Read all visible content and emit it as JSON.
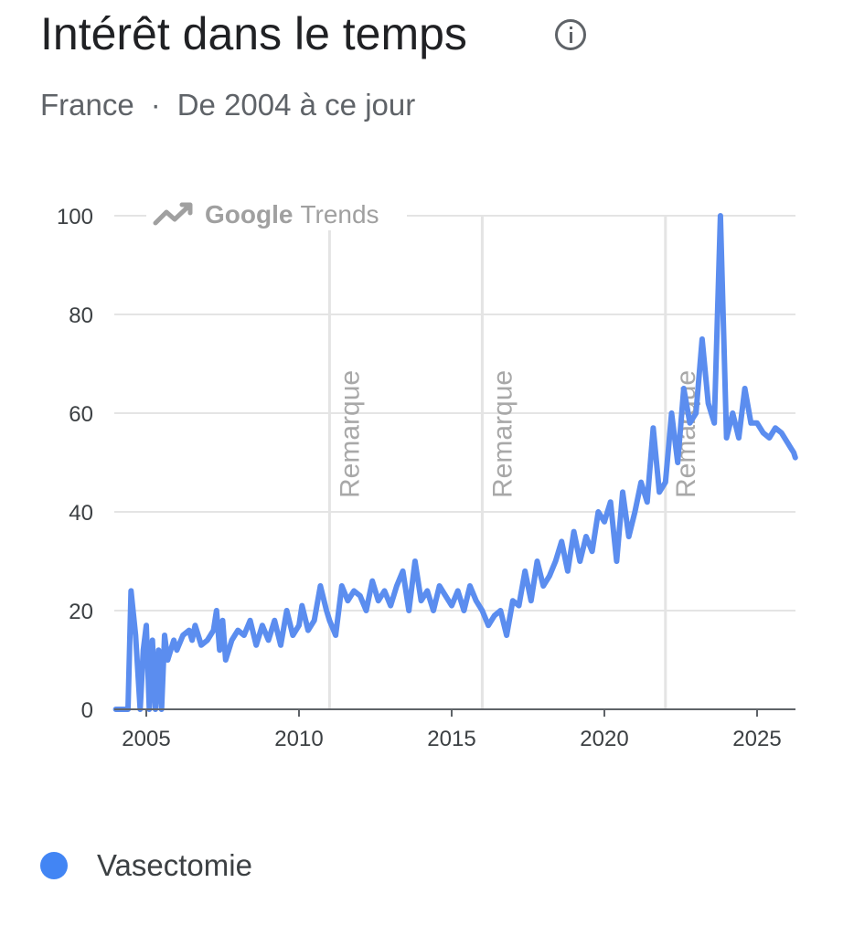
{
  "header": {
    "title": "Intérêt dans le temps",
    "region": "France",
    "separator": "·",
    "period": "De 2004 à ce jour"
  },
  "watermark": {
    "brand": "Google",
    "product": "Trends",
    "icon": "trending-up-icon"
  },
  "colors": {
    "series": "#5b8def",
    "legend": "#4285f4",
    "grid": "#e4e4e4"
  },
  "chart_data": {
    "type": "line",
    "title": "Intérêt dans le temps",
    "xlabel": "",
    "ylabel": "",
    "xlim": [
      2004.0,
      2026.25
    ],
    "ylim": [
      0,
      100
    ],
    "yticks": [
      0,
      20,
      40,
      60,
      80,
      100
    ],
    "ytick_labels": [
      "0",
      "20",
      "40",
      "60",
      "80",
      "100"
    ],
    "xticks": [
      2005,
      2010,
      2015,
      2020,
      2025
    ],
    "xtick_labels": [
      "2005",
      "2010",
      "2015",
      "2020",
      "2025"
    ],
    "grid": true,
    "legend_position": "bottom-left",
    "annotations": [
      {
        "x": 2011.0,
        "label": "Remarque"
      },
      {
        "x": 2016.0,
        "label": "Remarque"
      },
      {
        "x": 2022.0,
        "label": "Remarque"
      }
    ],
    "series": [
      {
        "name": "Vasectomie",
        "x": [
          2004.0,
          2004.2,
          2004.4,
          2004.5,
          2004.65,
          2004.8,
          2004.9,
          2005.0,
          2005.1,
          2005.2,
          2005.3,
          2005.4,
          2005.5,
          2005.6,
          2005.7,
          2005.8,
          2005.9,
          2006.0,
          2006.2,
          2006.4,
          2006.5,
          2006.6,
          2006.8,
          2007.0,
          2007.2,
          2007.3,
          2007.4,
          2007.5,
          2007.6,
          2007.8,
          2008.0,
          2008.2,
          2008.4,
          2008.6,
          2008.8,
          2009.0,
          2009.2,
          2009.4,
          2009.6,
          2009.8,
          2010.0,
          2010.1,
          2010.3,
          2010.5,
          2010.7,
          2010.9,
          2011.0,
          2011.2,
          2011.4,
          2011.6,
          2011.8,
          2012.0,
          2012.2,
          2012.4,
          2012.6,
          2012.8,
          2013.0,
          2013.2,
          2013.4,
          2013.6,
          2013.8,
          2014.0,
          2014.2,
          2014.4,
          2014.6,
          2014.8,
          2015.0,
          2015.2,
          2015.4,
          2015.6,
          2015.8,
          2016.0,
          2016.2,
          2016.4,
          2016.6,
          2016.8,
          2017.0,
          2017.2,
          2017.4,
          2017.6,
          2017.8,
          2018.0,
          2018.2,
          2018.4,
          2018.6,
          2018.8,
          2019.0,
          2019.2,
          2019.4,
          2019.6,
          2019.8,
          2020.0,
          2020.2,
          2020.4,
          2020.6,
          2020.8,
          2021.0,
          2021.2,
          2021.4,
          2021.6,
          2021.8,
          2022.0,
          2022.2,
          2022.4,
          2022.6,
          2022.8,
          2023.0,
          2023.2,
          2023.4,
          2023.6,
          2023.8,
          2024.0,
          2024.2,
          2024.4,
          2024.6,
          2024.8,
          2025.0,
          2025.2,
          2025.4,
          2025.6,
          2025.8,
          2026.0,
          2026.1,
          2026.2,
          2026.25
        ],
        "values": [
          0,
          0,
          0,
          24,
          15,
          0,
          12,
          17,
          0,
          14,
          0,
          12,
          0,
          15,
          10,
          12,
          14,
          12,
          15,
          16,
          14,
          17,
          13,
          14,
          16,
          20,
          12,
          18,
          10,
          14,
          16,
          15,
          18,
          13,
          17,
          14,
          18,
          13,
          20,
          15,
          17,
          21,
          16,
          18,
          25,
          20,
          18,
          15,
          25,
          22,
          24,
          23,
          20,
          26,
          22,
          24,
          21,
          25,
          28,
          20,
          30,
          22,
          24,
          20,
          25,
          23,
          21,
          24,
          20,
          25,
          22,
          20,
          17,
          19,
          20,
          15,
          22,
          21,
          28,
          22,
          30,
          25,
          27,
          30,
          34,
          28,
          36,
          30,
          35,
          32,
          40,
          38,
          42,
          30,
          44,
          35,
          40,
          46,
          42,
          57,
          44,
          46,
          60,
          50,
          65,
          58,
          60,
          75,
          62,
          58,
          100,
          55,
          60,
          55,
          65,
          58,
          58,
          56,
          55,
          57,
          56,
          54,
          53,
          52,
          51
        ]
      }
    ]
  },
  "legend": [
    {
      "label": "Vasectomie"
    }
  ]
}
